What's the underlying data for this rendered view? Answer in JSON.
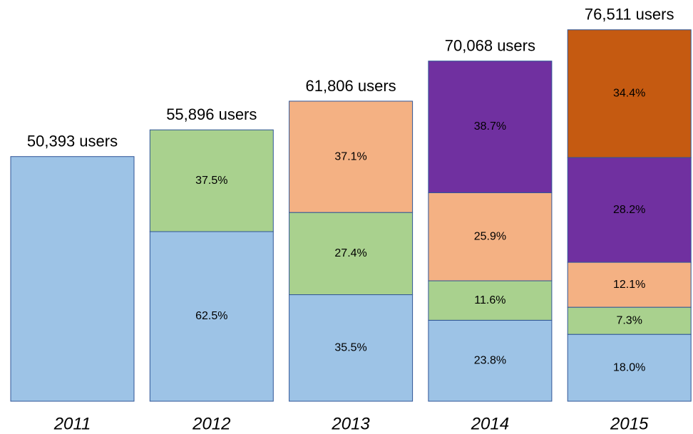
{
  "chart_data": {
    "type": "stacked-bar",
    "categories": [
      "2011",
      "2012",
      "2013",
      "2014",
      "2015"
    ],
    "values": [
      50393,
      55896,
      61806,
      70068,
      76511
    ],
    "value_labels": [
      "50,393 users",
      "55,896 users",
      "61,806 users",
      "70,068 users",
      "76,511 users"
    ],
    "ylim": [
      0,
      80000
    ],
    "series": [
      {
        "color": "#9dc3e6",
        "values": [
          100,
          62.5,
          35.5,
          23.8,
          18.0
        ],
        "value_labels": [
          null,
          "62.5%",
          "35.5%",
          "23.8%",
          "18.0%"
        ]
      },
      {
        "color": "#a9d18e",
        "values": [
          null,
          37.5,
          27.4,
          11.6,
          7.3
        ],
        "value_labels": [
          null,
          "37.5%",
          "27.4%",
          "11.6%",
          "7.3%"
        ]
      },
      {
        "color": "#f4b183",
        "values": [
          null,
          null,
          37.1,
          25.9,
          12.1
        ],
        "value_labels": [
          null,
          null,
          "37.1%",
          "25.9%",
          "12.1%"
        ]
      },
      {
        "color": "#7030a0",
        "values": [
          null,
          null,
          null,
          38.7,
          28.2
        ],
        "value_labels": [
          null,
          null,
          null,
          "38.7%",
          "28.2%"
        ]
      },
      {
        "color": "#c55a11",
        "values": [
          null,
          null,
          null,
          null,
          34.4
        ],
        "value_labels": [
          null,
          null,
          null,
          null,
          "34.4%"
        ]
      }
    ]
  }
}
